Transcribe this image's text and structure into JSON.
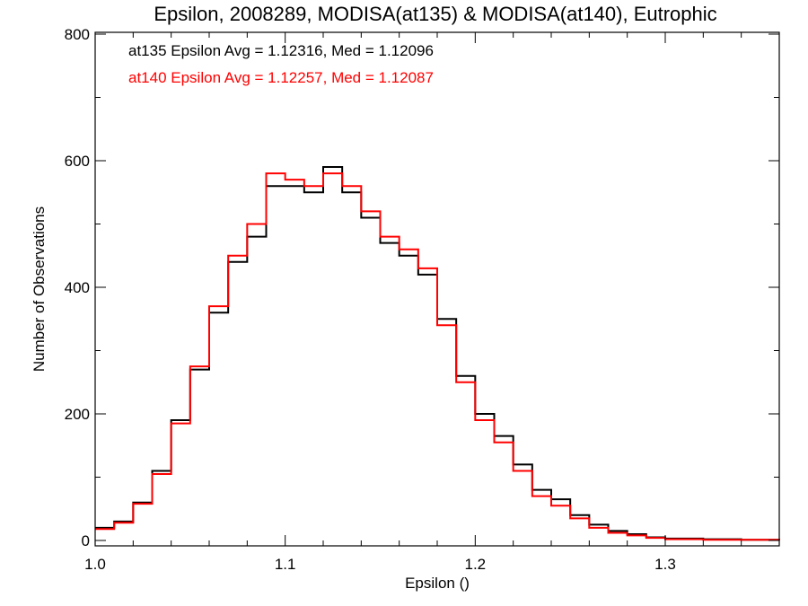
{
  "chart_data": {
    "type": "line",
    "title": "Epsilon, 2008289, MODISA(at135) & MODISA(at140), Eutrophic",
    "xlabel": "Epsilon ()",
    "ylabel": "Number of Observations",
    "xlim": [
      1.0,
      1.36
    ],
    "ylim": [
      0,
      800
    ],
    "x_ticks": [
      {
        "value": 1.0,
        "label": "1.0"
      },
      {
        "value": 1.1,
        "label": "1.1"
      },
      {
        "value": 1.2,
        "label": "1.2"
      },
      {
        "value": 1.3,
        "label": "1.3"
      }
    ],
    "y_ticks": [
      {
        "value": 0,
        "label": "0"
      },
      {
        "value": 200,
        "label": "200"
      },
      {
        "value": 400,
        "label": "400"
      },
      {
        "value": 600,
        "label": "600"
      },
      {
        "value": 800,
        "label": "800"
      }
    ],
    "grid": false,
    "annotations": [
      {
        "text": "at135 Epsilon Avg = 1.12316, Med = 1.12096",
        "color": "#000000"
      },
      {
        "text": "at140 Epsilon Avg = 1.12257, Med = 1.12087",
        "color": "#ff0000"
      }
    ],
    "series": [
      {
        "color": "#000000",
        "x": [
          1.0,
          1.01,
          1.02,
          1.03,
          1.04,
          1.05,
          1.06,
          1.07,
          1.08,
          1.09,
          1.1,
          1.11,
          1.12,
          1.13,
          1.14,
          1.15,
          1.16,
          1.17,
          1.18,
          1.19,
          1.2,
          1.21,
          1.22,
          1.23,
          1.24,
          1.25,
          1.26,
          1.27,
          1.28,
          1.29,
          1.3,
          1.32,
          1.34,
          1.36
        ],
        "values": [
          20,
          30,
          60,
          110,
          190,
          270,
          360,
          440,
          480,
          560,
          560,
          550,
          590,
          550,
          510,
          470,
          450,
          420,
          350,
          260,
          200,
          165,
          120,
          80,
          65,
          40,
          25,
          15,
          10,
          5,
          3,
          2,
          1,
          0
        ]
      },
      {
        "color": "#ff0000",
        "x": [
          1.0,
          1.01,
          1.02,
          1.03,
          1.04,
          1.05,
          1.06,
          1.07,
          1.08,
          1.09,
          1.1,
          1.11,
          1.12,
          1.13,
          1.14,
          1.15,
          1.16,
          1.17,
          1.18,
          1.19,
          1.2,
          1.21,
          1.22,
          1.23,
          1.24,
          1.25,
          1.26,
          1.27,
          1.28,
          1.29,
          1.3,
          1.32,
          1.34,
          1.36
        ],
        "values": [
          18,
          28,
          58,
          105,
          185,
          275,
          370,
          450,
          500,
          580,
          570,
          560,
          580,
          560,
          520,
          480,
          460,
          430,
          340,
          250,
          190,
          155,
          110,
          70,
          55,
          35,
          20,
          12,
          8,
          4,
          2,
          1,
          1,
          0
        ]
      }
    ]
  }
}
